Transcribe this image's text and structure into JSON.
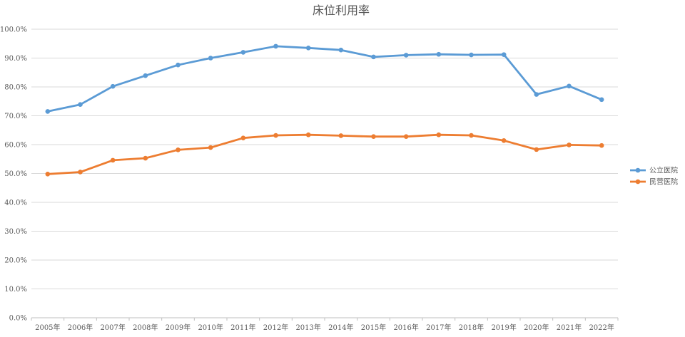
{
  "chart_data": {
    "type": "line",
    "title": "床位利用率",
    "xlabel": "",
    "ylabel": "",
    "categories": [
      "2005年",
      "2006年",
      "2007年",
      "2008年",
      "2009年",
      "2010年",
      "2011年",
      "2012年",
      "2013年",
      "2014年",
      "2015年",
      "2016年",
      "2017年",
      "2018年",
      "2019年",
      "2020年",
      "2021年",
      "2022年"
    ],
    "y_ticks": [
      "0.0%",
      "10.0%",
      "20.0%",
      "30.0%",
      "40.0%",
      "50.0%",
      "60.0%",
      "70.0%",
      "80.0%",
      "90.0%",
      "100.0%"
    ],
    "ylim": [
      0,
      100
    ],
    "grid": true,
    "legend_position": "right",
    "series": [
      {
        "name": "公立医院",
        "color": "#5b9bd5",
        "values": [
          71.5,
          73.9,
          80.2,
          83.9,
          87.6,
          90.0,
          92.0,
          94.1,
          93.5,
          92.8,
          90.4,
          91.0,
          91.3,
          91.1,
          91.2,
          77.4,
          80.3,
          75.6
        ]
      },
      {
        "name": "民营医院",
        "color": "#ed7d31",
        "values": [
          49.8,
          50.5,
          54.6,
          55.3,
          58.2,
          59.0,
          62.3,
          63.2,
          63.4,
          63.1,
          62.8,
          62.8,
          63.4,
          63.2,
          61.4,
          58.3,
          59.9,
          59.7
        ]
      }
    ]
  }
}
